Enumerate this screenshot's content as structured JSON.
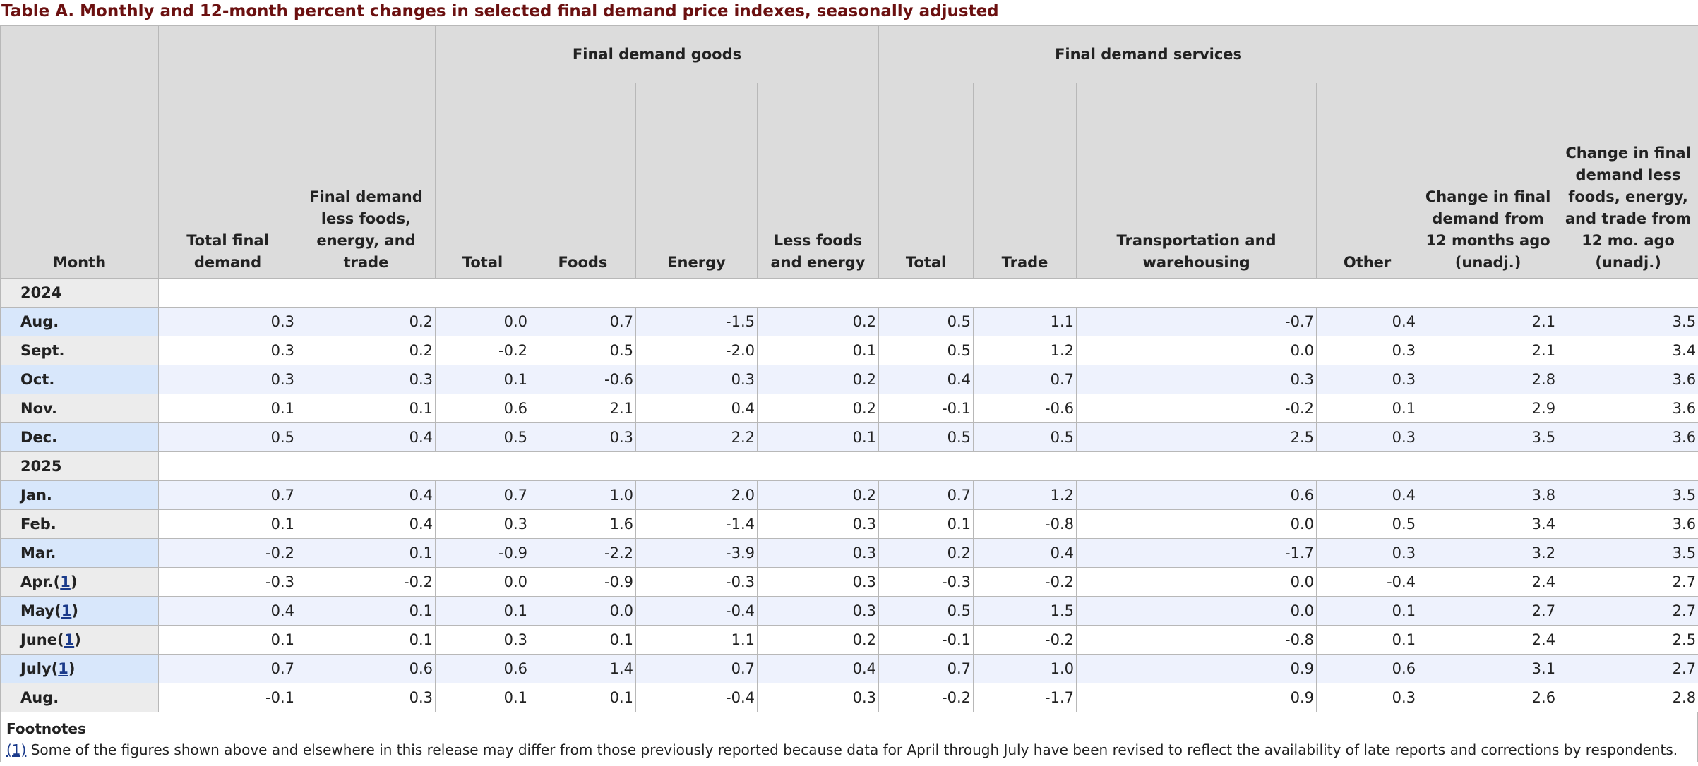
{
  "caption": "Table A. Monthly and 12-month percent changes in selected final demand price indexes, seasonally adjusted",
  "headers": {
    "month": "Month",
    "total_final_demand": "Total final demand",
    "fd_less_fet": "Final demand less foods, energy, and trade",
    "goods_group": "Final demand goods",
    "goods_total": "Total",
    "goods_foods": "Foods",
    "goods_energy": "Energy",
    "goods_less_fe": "Less foods and energy",
    "services_group": "Final demand services",
    "services_total": "Total",
    "services_trade": "Trade",
    "services_tw": "Transportation and warehousing",
    "services_other": "Other",
    "change_12m": "Change in final demand from 12 months ago (unadj.)",
    "change_12m_core": "Change in final demand less foods, energy, and trade from 12 mo. ago (unadj.)"
  },
  "years": {
    "y2024": "2024",
    "y2025": "2025"
  },
  "rows": [
    {
      "month": "Aug.",
      "fn": "",
      "v": [
        "0.3",
        "0.2",
        "0.0",
        "0.7",
        "-1.5",
        "0.2",
        "0.5",
        "1.1",
        "-0.7",
        "0.4",
        "2.1",
        "3.5"
      ]
    },
    {
      "month": "Sept.",
      "fn": "",
      "v": [
        "0.3",
        "0.2",
        "-0.2",
        "0.5",
        "-2.0",
        "0.1",
        "0.5",
        "1.2",
        "0.0",
        "0.3",
        "2.1",
        "3.4"
      ]
    },
    {
      "month": "Oct.",
      "fn": "",
      "v": [
        "0.3",
        "0.3",
        "0.1",
        "-0.6",
        "0.3",
        "0.2",
        "0.4",
        "0.7",
        "0.3",
        "0.3",
        "2.8",
        "3.6"
      ]
    },
    {
      "month": "Nov.",
      "fn": "",
      "v": [
        "0.1",
        "0.1",
        "0.6",
        "2.1",
        "0.4",
        "0.2",
        "-0.1",
        "-0.6",
        "-0.2",
        "0.1",
        "2.9",
        "3.6"
      ]
    },
    {
      "month": "Dec.",
      "fn": "",
      "v": [
        "0.5",
        "0.4",
        "0.5",
        "0.3",
        "2.2",
        "0.1",
        "0.5",
        "0.5",
        "2.5",
        "0.3",
        "3.5",
        "3.6"
      ]
    },
    {
      "month": "Jan.",
      "fn": "",
      "v": [
        "0.7",
        "0.4",
        "0.7",
        "1.0",
        "2.0",
        "0.2",
        "0.7",
        "1.2",
        "0.6",
        "0.4",
        "3.8",
        "3.5"
      ]
    },
    {
      "month": "Feb.",
      "fn": "",
      "v": [
        "0.1",
        "0.4",
        "0.3",
        "1.6",
        "-1.4",
        "0.3",
        "0.1",
        "-0.8",
        "0.0",
        "0.5",
        "3.4",
        "3.6"
      ]
    },
    {
      "month": "Mar.",
      "fn": "",
      "v": [
        "-0.2",
        "0.1",
        "-0.9",
        "-2.2",
        "-3.9",
        "0.3",
        "0.2",
        "0.4",
        "-1.7",
        "0.3",
        "3.2",
        "3.5"
      ]
    },
    {
      "month": "Apr.",
      "fn": "1",
      "v": [
        "-0.3",
        "-0.2",
        "0.0",
        "-0.9",
        "-0.3",
        "0.3",
        "-0.3",
        "-0.2",
        "0.0",
        "-0.4",
        "2.4",
        "2.7"
      ]
    },
    {
      "month": "May",
      "fn": "1",
      "v": [
        "0.4",
        "0.1",
        "0.1",
        "0.0",
        "-0.4",
        "0.3",
        "0.5",
        "1.5",
        "0.0",
        "0.1",
        "2.7",
        "2.7"
      ]
    },
    {
      "month": "June",
      "fn": "1",
      "v": [
        "0.1",
        "0.1",
        "0.3",
        "0.1",
        "1.1",
        "0.2",
        "-0.1",
        "-0.2",
        "-0.8",
        "0.1",
        "2.4",
        "2.5"
      ]
    },
    {
      "month": "July",
      "fn": "1",
      "v": [
        "0.7",
        "0.6",
        "0.6",
        "1.4",
        "0.7",
        "0.4",
        "0.7",
        "1.0",
        "0.9",
        "0.6",
        "3.1",
        "2.7"
      ]
    },
    {
      "month": "Aug.",
      "fn": "",
      "v": [
        "-0.1",
        "0.3",
        "0.1",
        "0.1",
        "-0.4",
        "0.3",
        "-0.2",
        "-1.7",
        "0.9",
        "0.3",
        "2.6",
        "2.8"
      ]
    }
  ],
  "footnotes": {
    "title": "Footnotes",
    "marker": "(1)",
    "text": " Some of the figures shown above and elsewhere in this release may differ from those previously reported because data for April through July have been revised to reflect the availability of late reports and corrections by respondents."
  }
}
